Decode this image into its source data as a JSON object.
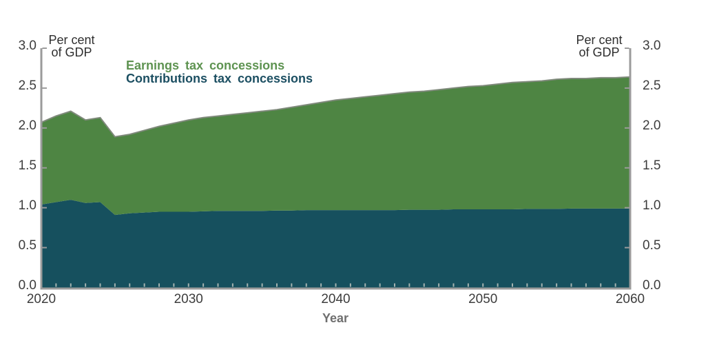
{
  "labels": {
    "unit_left_line1": "Per cent",
    "unit_left_line2": "of GDP",
    "unit_right_line1": "Per cent",
    "unit_right_line2": "of GDP"
  },
  "colors": {
    "earnings_fill": "#4e8543",
    "contributions_fill": "#16505e",
    "total_line_stroke": "#7f897b",
    "axis_line": "#9b9b9b",
    "x_tick": "#a5b3b0",
    "tick_text": "#3c3c3c"
  },
  "chart_data": {
    "type": "area",
    "stacked": true,
    "title": "",
    "xlabel": "Year",
    "ylabel_left": "Per cent of GDP",
    "ylabel_right": "Per cent of GDP",
    "ylim": [
      0.0,
      3.0
    ],
    "ytick_labels": [
      "3.0",
      "2.5",
      "2.0",
      "1.5",
      "1.0",
      "0.5",
      "0.0"
    ],
    "ytick_values": [
      3.0,
      2.5,
      2.0,
      1.5,
      1.0,
      0.5,
      0.0
    ],
    "xtick_values": [
      2020,
      2030,
      2040,
      2050,
      2060
    ],
    "x_minor_tick_step_years": 1,
    "grid": false,
    "legend_position": "inside-top-left",
    "x": [
      2020,
      2021,
      2022,
      2023,
      2024,
      2025,
      2026,
      2027,
      2028,
      2029,
      2030,
      2031,
      2032,
      2033,
      2034,
      2035,
      2036,
      2037,
      2038,
      2039,
      2040,
      2041,
      2042,
      2043,
      2044,
      2045,
      2046,
      2047,
      2048,
      2049,
      2050,
      2051,
      2052,
      2053,
      2054,
      2055,
      2056,
      2057,
      2058,
      2059,
      2060
    ],
    "series": [
      {
        "name": "Contributions tax concessions",
        "color": "#16505e",
        "values": [
          1.04,
          1.07,
          1.1,
          1.06,
          1.07,
          0.91,
          0.93,
          0.94,
          0.95,
          0.95,
          0.95,
          0.955,
          0.96,
          0.96,
          0.96,
          0.96,
          0.965,
          0.965,
          0.97,
          0.97,
          0.97,
          0.97,
          0.97,
          0.97,
          0.97,
          0.975,
          0.975,
          0.975,
          0.98,
          0.98,
          0.98,
          0.98,
          0.98,
          0.985,
          0.985,
          0.985,
          0.99,
          0.99,
          0.99,
          0.99,
          0.99
        ]
      },
      {
        "name": "Earnings tax concessions",
        "color": "#4e8543",
        "values": [
          1.03,
          1.08,
          1.11,
          1.04,
          1.06,
          0.98,
          0.99,
          1.03,
          1.07,
          1.11,
          1.15,
          1.175,
          1.19,
          1.21,
          1.23,
          1.25,
          1.265,
          1.295,
          1.32,
          1.35,
          1.38,
          1.4,
          1.42,
          1.44,
          1.46,
          1.475,
          1.485,
          1.505,
          1.52,
          1.54,
          1.55,
          1.57,
          1.59,
          1.595,
          1.605,
          1.625,
          1.63,
          1.63,
          1.64,
          1.64,
          1.65
        ]
      }
    ],
    "legend": [
      {
        "label": "Earnings tax concessions",
        "color": "#5e9351"
      },
      {
        "label": "Contributions tax concessions",
        "color": "#1c4f62"
      }
    ]
  }
}
